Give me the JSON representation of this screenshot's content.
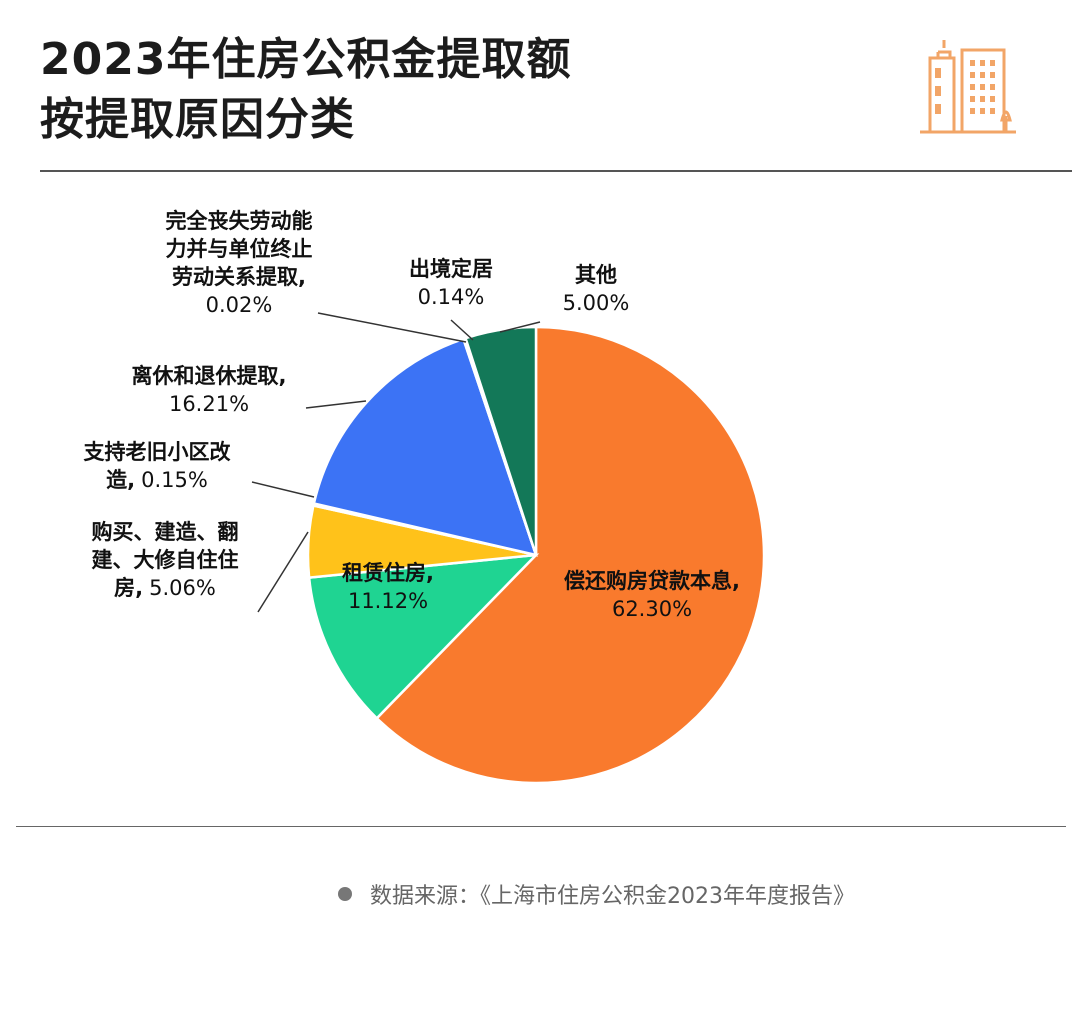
{
  "title": {
    "line1": "2023年住房公积金提取额",
    "line2": "按提取原因分类"
  },
  "logo_icon": "city-buildings-icon",
  "colors": {
    "orange": "#F97A2D",
    "green": "#1FD492",
    "yellow": "#FFC21A",
    "blue": "#3C73F5",
    "dark_green": "#137858",
    "logo": "#F2A567"
  },
  "chart_data": {
    "type": "pie",
    "title": "2023年住房公积金提取额按提取原因分类",
    "slices": [
      {
        "name": "偿还购房贷款本息",
        "value": 62.3,
        "label_lines": [
          "偿还购房贷款本息,"
        ],
        "value_text": "62.30%",
        "color": "#F97A2D"
      },
      {
        "name": "租赁住房",
        "value": 11.12,
        "label_lines": [
          "租赁住房,"
        ],
        "value_text": "11.12%",
        "color": "#1FD492"
      },
      {
        "name": "购买、建造、翻建、大修自住住房",
        "value": 5.06,
        "label_lines": [
          "购买、建造、翻",
          "建、大修自住住",
          "房,"
        ],
        "value_text": "5.06%",
        "color": "#FFC21A"
      },
      {
        "name": "支持老旧小区改造",
        "value": 0.15,
        "label_lines": [
          "支持老旧小区改",
          "造,"
        ],
        "value_text": "0.15%",
        "color": "#FFFFFF"
      },
      {
        "name": "离休和退休提取",
        "value": 16.21,
        "label_lines": [
          "离休和退休提取,"
        ],
        "value_text": "16.21%",
        "color": "#3C73F5"
      },
      {
        "name": "完全丧失劳动能力并与单位终止劳动关系提取",
        "value": 0.02,
        "label_lines": [
          "完全丧失劳动能",
          "力并与单位终止",
          "劳动关系提取,"
        ],
        "value_text": "0.02%",
        "color": "#FFFFFF"
      },
      {
        "name": "出境定居",
        "value": 0.14,
        "label_lines": [
          "出境定居"
        ],
        "value_text": "0.14%",
        "color": "#FFFFFF"
      },
      {
        "name": "其他",
        "value": 5.0,
        "label_lines": [
          "其他"
        ],
        "value_text": "5.00%",
        "color": "#137858"
      }
    ]
  },
  "source": {
    "text": "数据来源：《上海市住房公积金2023年年度报告》"
  }
}
